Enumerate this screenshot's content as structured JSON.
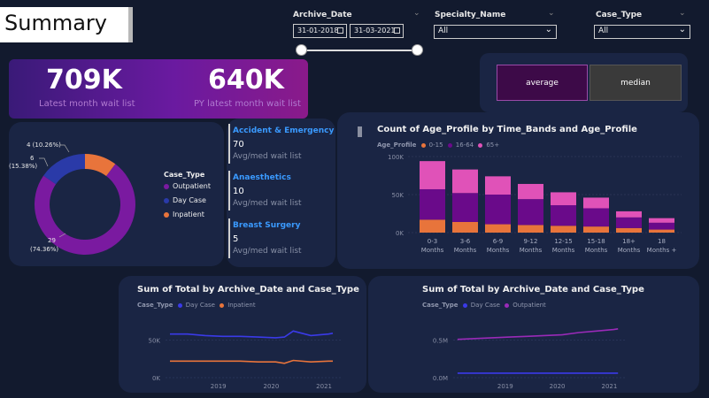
{
  "header": {
    "title": "Summary"
  },
  "filters": {
    "archive_date": {
      "label": "Archive_Date",
      "start": "31-01-2018",
      "end": "31-03-2021"
    },
    "specialty": {
      "label": "Specialty_Name",
      "value": "All"
    },
    "case_type": {
      "label": "Case_Type",
      "value": "All"
    }
  },
  "kpi": {
    "latest_value": "709K",
    "latest_label": "Latest month wait list",
    "py_value": "640K",
    "py_label": "PY latest month wait list"
  },
  "toggle": {
    "average": "average",
    "median": "median"
  },
  "specialties": [
    {
      "name": "Accident & Emergency",
      "value": "70",
      "sub": "Avg/med wait list"
    },
    {
      "name": "Anaesthetics",
      "value": "10",
      "sub": "Avg/med wait list"
    },
    {
      "name": "Breast Surgery",
      "value": "5",
      "sub": "Avg/med wait list"
    }
  ],
  "colors": {
    "outpatient": "#7a1aa0",
    "daycase": "#2a3aa8",
    "inpatient": "#e8743b",
    "age_0_15": "#e8743b",
    "age_16_64": "#6a0a8a",
    "age_65": "#e052b8",
    "line_daycase": "#3a3ae8",
    "line_outpatient": "#9a2ab8"
  },
  "chart_data": [
    {
      "type": "pie",
      "legend_title": "Case_Type",
      "labels": [
        "Outpatient",
        "Day Case",
        "Inpatient"
      ],
      "values": [
        29,
        6,
        4
      ],
      "data_labels": [
        "29\n(74.36%)",
        "6\n(15.38%)",
        "4 (10.26%)"
      ]
    },
    {
      "type": "bar",
      "title": "Count of Age_Profile by Time_Bands and Age_Profile",
      "legend_title": "Age_Profile",
      "categories": [
        "0-3 Months",
        "3-6 Months",
        "6-9 Months",
        "9-12 Months",
        "12-15 Months",
        "15-18 Months",
        "18+ Months",
        "18 Months +"
      ],
      "series": [
        {
          "name": "0-15",
          "values": [
            17000,
            14000,
            11000,
            10000,
            9000,
            8000,
            6000,
            4000
          ]
        },
        {
          "name": "16-64",
          "values": [
            40000,
            38000,
            39000,
            34000,
            27000,
            24000,
            14000,
            9000
          ]
        },
        {
          "name": "65+",
          "values": [
            37000,
            31000,
            24000,
            20000,
            17000,
            14000,
            8000,
            6000
          ]
        }
      ],
      "yticks": [
        "0K",
        "50K",
        "100K"
      ],
      "ylim": [
        0,
        100000
      ]
    },
    {
      "type": "line",
      "title": "Sum of Total by Archive_Date and Case_Type",
      "legend_title": "Case_Type",
      "x": [
        "2018-02",
        "2018-06",
        "2018-10",
        "2019-02",
        "2019-06",
        "2019-10",
        "2020-02",
        "2020-04",
        "2020-06",
        "2020-10",
        "2021-02",
        "2021-03"
      ],
      "xticks": [
        "2019",
        "2020",
        "2021"
      ],
      "yticks": [
        "0K",
        "50K"
      ],
      "ylim": [
        0,
        100000
      ],
      "series": [
        {
          "name": "Day Case",
          "values": [
            58000,
            58000,
            56000,
            55000,
            55000,
            54000,
            53000,
            54000,
            62000,
            56000,
            58000,
            59000
          ]
        },
        {
          "name": "Inpatient",
          "values": [
            22000,
            22000,
            22000,
            22000,
            22000,
            21000,
            21000,
            19000,
            23000,
            21000,
            22000,
            22000
          ]
        }
      ]
    },
    {
      "type": "line",
      "title": "Sum of Total by Archive_Date and Case_Type",
      "legend_title": "Case_Type",
      "x": [
        "2018-02",
        "2018-06",
        "2018-10",
        "2019-02",
        "2019-06",
        "2019-10",
        "2020-02",
        "2020-06",
        "2020-10",
        "2021-02",
        "2021-03"
      ],
      "xticks": [
        "2019",
        "2020",
        "2021"
      ],
      "yticks": [
        "0.0M",
        "0.5M"
      ],
      "ylim": [
        0,
        1000000
      ],
      "series": [
        {
          "name": "Day Case",
          "values": [
            60000,
            60000,
            60000,
            60000,
            60000,
            60000,
            60000,
            60000,
            60000,
            60000,
            60000
          ]
        },
        {
          "name": "Outpatient",
          "values": [
            510000,
            520000,
            530000,
            540000,
            550000,
            560000,
            570000,
            600000,
            620000,
            640000,
            650000
          ]
        }
      ]
    }
  ]
}
